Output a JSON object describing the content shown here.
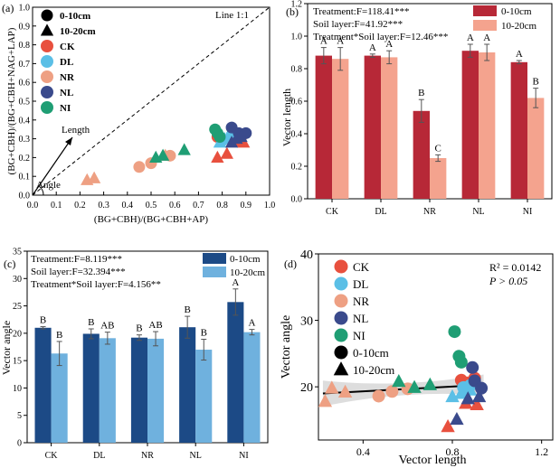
{
  "palette": {
    "CK": "#e8503e",
    "DL": "#5bbfe6",
    "NR": "#eea083",
    "NL": "#3a4a8c",
    "NI": "#1f9e74",
    "red_dark": "#b72837",
    "red_light": "#f4a38e",
    "blue_dark": "#1c4a86",
    "blue_light": "#6fb1de",
    "band": "#d2d2d2"
  },
  "chart_data": [
    {
      "panel": "(a)",
      "type": "scatter",
      "xlabel": "(BG+CBH)/(BG+CBH+AP)",
      "ylabel": "(BG+CBH)/(BG+CBH+NAG+LAP)",
      "xlim": [
        0,
        1.0
      ],
      "ylim": [
        0,
        1.0
      ],
      "xticks": [
        "0.0",
        "0.1",
        "0.2",
        "0.3",
        "0.4",
        "0.5",
        "0.6",
        "0.7",
        "0.8",
        "0.9",
        "1.0"
      ],
      "yticks": [
        "0.0",
        "0.1",
        "0.2",
        "0.3",
        "0.4",
        "0.5",
        "0.6",
        "0.7",
        "0.8",
        "0.9",
        "1.0"
      ],
      "line_label": "Line 1:1",
      "length_label": "Length",
      "angle_label": "Angle",
      "legend_layers": [
        "0-10cm",
        "10-20cm"
      ],
      "legend_treatments": [
        "CK",
        "DL",
        "NR",
        "NL",
        "NI"
      ],
      "points": [
        {
          "t": "CK",
          "layer": "0-10cm",
          "x": 0.86,
          "y": 0.29
        },
        {
          "t": "CK",
          "layer": "0-10cm",
          "x": 0.88,
          "y": 0.31
        },
        {
          "t": "CK",
          "layer": "0-10cm",
          "x": 0.78,
          "y": 0.31
        },
        {
          "t": "CK",
          "layer": "10-20cm",
          "x": 0.78,
          "y": 0.2
        },
        {
          "t": "CK",
          "layer": "10-20cm",
          "x": 0.82,
          "y": 0.22
        },
        {
          "t": "CK",
          "layer": "10-20cm",
          "x": 0.89,
          "y": 0.28
        },
        {
          "t": "DL",
          "layer": "0-10cm",
          "x": 0.8,
          "y": 0.29
        },
        {
          "t": "DL",
          "layer": "0-10cm",
          "x": 0.84,
          "y": 0.32
        },
        {
          "t": "DL",
          "layer": "0-10cm",
          "x": 0.86,
          "y": 0.31
        },
        {
          "t": "DL",
          "layer": "10-20cm",
          "x": 0.79,
          "y": 0.28
        },
        {
          "t": "DL",
          "layer": "10-20cm",
          "x": 0.81,
          "y": 0.3
        },
        {
          "t": "DL",
          "layer": "10-20cm",
          "x": 0.85,
          "y": 0.31
        },
        {
          "t": "NR",
          "layer": "0-10cm",
          "x": 0.45,
          "y": 0.15
        },
        {
          "t": "NR",
          "layer": "0-10cm",
          "x": 0.5,
          "y": 0.17
        },
        {
          "t": "NR",
          "layer": "0-10cm",
          "x": 0.58,
          "y": 0.21
        },
        {
          "t": "NR",
          "layer": "10-20cm",
          "x": 0.23,
          "y": 0.08
        },
        {
          "t": "NR",
          "layer": "10-20cm",
          "x": 0.26,
          "y": 0.09
        },
        {
          "t": "NR",
          "layer": "10-20cm",
          "x": 0.56,
          "y": 0.21
        },
        {
          "t": "NL",
          "layer": "0-10cm",
          "x": 0.84,
          "y": 0.36
        },
        {
          "t": "NL",
          "layer": "0-10cm",
          "x": 0.87,
          "y": 0.33
        },
        {
          "t": "NL",
          "layer": "0-10cm",
          "x": 0.9,
          "y": 0.33
        },
        {
          "t": "NL",
          "layer": "10-20cm",
          "x": 0.84,
          "y": 0.28
        },
        {
          "t": "NL",
          "layer": "10-20cm",
          "x": 0.86,
          "y": 0.3
        },
        {
          "t": "NL",
          "layer": "10-20cm",
          "x": 0.88,
          "y": 0.31
        },
        {
          "t": "NI",
          "layer": "0-10cm",
          "x": 0.77,
          "y": 0.35
        },
        {
          "t": "NI",
          "layer": "0-10cm",
          "x": 0.78,
          "y": 0.33
        },
        {
          "t": "NI",
          "layer": "0-10cm",
          "x": 0.79,
          "y": 0.31
        },
        {
          "t": "NI",
          "layer": "10-20cm",
          "x": 0.52,
          "y": 0.2
        },
        {
          "t": "NI",
          "layer": "10-20cm",
          "x": 0.55,
          "y": 0.21
        },
        {
          "t": "NI",
          "layer": "10-20cm",
          "x": 0.64,
          "y": 0.24
        }
      ]
    },
    {
      "panel": "(b)",
      "type": "bar",
      "ylabel": "Vector length",
      "ylim": [
        0,
        1.2
      ],
      "yticks": [
        "0.0",
        "0.2",
        "0.4",
        "0.6",
        "0.8",
        "1.0",
        "1.2"
      ],
      "categories": [
        "CK",
        "DL",
        "NR",
        "NL",
        "NI"
      ],
      "stats": [
        "Treatment:F=118.41***",
        "Soil layer:F=41.92***",
        "Treatment*Soil layer:F=12.46***"
      ],
      "series": [
        {
          "name": "0-10cm",
          "values": [
            0.88,
            0.88,
            0.54,
            0.91,
            0.84
          ],
          "errors": [
            0.05,
            0.01,
            0.07,
            0.04,
            0.01
          ],
          "letters": [
            "A",
            "A",
            "B",
            "A",
            "A"
          ]
        },
        {
          "name": "10-20cm",
          "values": [
            0.86,
            0.87,
            0.25,
            0.9,
            0.62
          ],
          "errors": [
            0.07,
            0.04,
            0.02,
            0.05,
            0.06
          ],
          "letters": [
            "A",
            "A",
            "C",
            "A",
            "B"
          ]
        }
      ]
    },
    {
      "panel": "(c)",
      "type": "bar",
      "ylabel": "Vector angle",
      "ylim": [
        0,
        35
      ],
      "yticks": [
        "0",
        "5",
        "10",
        "15",
        "20",
        "25",
        "30",
        "35"
      ],
      "categories": [
        "CK",
        "DL",
        "NR",
        "NL",
        "NI"
      ],
      "stats": [
        "Treatment:F=8.119***",
        "Soil layer:F=32.394***",
        "Treatment*Soil layer:F=4.156**"
      ],
      "series": [
        {
          "name": "0-10cm",
          "values": [
            21.0,
            19.9,
            19.2,
            21.1,
            25.7
          ],
          "errors": [
            0.2,
            0.9,
            0.5,
            2.0,
            2.4
          ],
          "letters": [
            "B",
            "B",
            "B",
            "B",
            "A"
          ]
        },
        {
          "name": "10-20cm",
          "values": [
            16.3,
            19.1,
            19.0,
            17.0,
            20.2
          ],
          "errors": [
            2.2,
            1.1,
            1.3,
            1.9,
            0.5
          ],
          "letters": [
            "B",
            "AB",
            "AB",
            "B",
            "A"
          ]
        }
      ]
    },
    {
      "panel": "(d)",
      "type": "scatter",
      "xlabel": "Vector length",
      "ylabel": "Vector angle",
      "xlim": [
        0.2,
        1.25
      ],
      "ylim": [
        12,
        40
      ],
      "xticks": [
        "0.4",
        "0.8",
        "1.2"
      ],
      "yticks": [
        "20",
        "30",
        "40"
      ],
      "r2": "R² = 0.0142",
      "p": "P > 0.05",
      "fit": {
        "slope": 1.8,
        "intercept": 18.6
      },
      "legend_layers": [
        "0-10cm",
        "10-20cm"
      ],
      "legend_treatments": [
        "CK",
        "DL",
        "NR",
        "NL",
        "NI"
      ],
      "points": [
        {
          "t": "CK",
          "layer": "0-10cm",
          "x": 0.84,
          "y": 21.0
        },
        {
          "t": "CK",
          "layer": "0-10cm",
          "x": 0.87,
          "y": 20.6
        },
        {
          "t": "CK",
          "layer": "0-10cm",
          "x": 0.9,
          "y": 21.3
        },
        {
          "t": "CK",
          "layer": "10-20cm",
          "x": 0.78,
          "y": 14.0
        },
        {
          "t": "CK",
          "layer": "10-20cm",
          "x": 0.86,
          "y": 17.5
        },
        {
          "t": "CK",
          "layer": "10-20cm",
          "x": 0.91,
          "y": 17.3
        },
        {
          "t": "DL",
          "layer": "0-10cm",
          "x": 0.86,
          "y": 19.6
        },
        {
          "t": "DL",
          "layer": "0-10cm",
          "x": 0.88,
          "y": 20.2
        },
        {
          "t": "DL",
          "layer": "0-10cm",
          "x": 0.85,
          "y": 19.9
        },
        {
          "t": "DL",
          "layer": "10-20cm",
          "x": 0.8,
          "y": 18.5
        },
        {
          "t": "DL",
          "layer": "10-20cm",
          "x": 0.84,
          "y": 19.0
        },
        {
          "t": "DL",
          "layer": "10-20cm",
          "x": 0.88,
          "y": 19.5
        },
        {
          "t": "NR",
          "layer": "0-10cm",
          "x": 0.47,
          "y": 18.6
        },
        {
          "t": "NR",
          "layer": "0-10cm",
          "x": 0.53,
          "y": 19.3
        },
        {
          "t": "NR",
          "layer": "0-10cm",
          "x": 0.6,
          "y": 19.7
        },
        {
          "t": "NR",
          "layer": "10-20cm",
          "x": 0.23,
          "y": 17.8
        },
        {
          "t": "NR",
          "layer": "10-20cm",
          "x": 0.26,
          "y": 19.8
        },
        {
          "t": "NR",
          "layer": "10-20cm",
          "x": 0.32,
          "y": 19.2
        },
        {
          "t": "NL",
          "layer": "0-10cm",
          "x": 0.89,
          "y": 22.9
        },
        {
          "t": "NL",
          "layer": "0-10cm",
          "x": 0.9,
          "y": 20.9
        },
        {
          "t": "NL",
          "layer": "0-10cm",
          "x": 0.93,
          "y": 19.8
        },
        {
          "t": "NL",
          "layer": "10-20cm",
          "x": 0.82,
          "y": 15.1
        },
        {
          "t": "NL",
          "layer": "10-20cm",
          "x": 0.87,
          "y": 18.2
        },
        {
          "t": "NL",
          "layer": "10-20cm",
          "x": 0.92,
          "y": 18.5
        },
        {
          "t": "NI",
          "layer": "0-10cm",
          "x": 0.81,
          "y": 28.3
        },
        {
          "t": "NI",
          "layer": "0-10cm",
          "x": 0.83,
          "y": 24.6
        },
        {
          "t": "NI",
          "layer": "0-10cm",
          "x": 0.84,
          "y": 23.7
        },
        {
          "t": "NI",
          "layer": "10-20cm",
          "x": 0.56,
          "y": 20.8
        },
        {
          "t": "NI",
          "layer": "10-20cm",
          "x": 0.63,
          "y": 19.9
        },
        {
          "t": "NI",
          "layer": "10-20cm",
          "x": 0.7,
          "y": 20.3
        }
      ]
    }
  ]
}
